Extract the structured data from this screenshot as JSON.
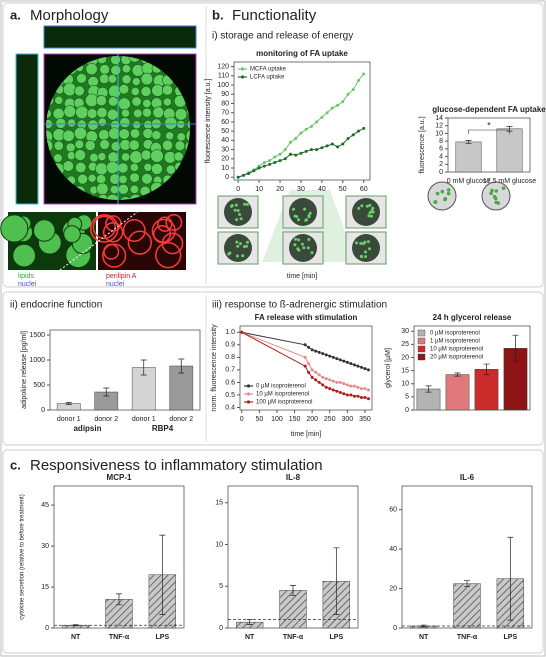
{
  "figure": {
    "a_label": "a.",
    "a_title": "Morphology",
    "stain_left": [
      "lipids",
      "nuclei"
    ],
    "stain_right": [
      "perilipin A",
      "nuclei"
    ],
    "b_label": "b.",
    "b_title": "Functionality",
    "b_i": "i) storage and release of energy",
    "b_ii": "ii) endocrine function",
    "b_iii": "iii) response to ß-adrenergic stimulation",
    "c_label": "c.",
    "c_title": "Responsiveness to inflammatory stimulation"
  },
  "chart_data": [
    {
      "type": "line",
      "title": "monitoring of FA uptake",
      "xlabel": "time [min]",
      "ylabel": "fluorescence intensity [a.u.]",
      "x": [
        0,
        2.5,
        5,
        7.5,
        10,
        12.5,
        15,
        17.5,
        20,
        22.5,
        25,
        27.5,
        30,
        32.5,
        35,
        37.5,
        40,
        42.5,
        45,
        47.5,
        50,
        52.5,
        55,
        57.5,
        60
      ],
      "xlim": [
        -2,
        63
      ],
      "xticks": [
        0,
        10,
        20,
        30,
        40,
        50,
        60
      ],
      "ylim": [
        -3,
        125
      ],
      "yticks": [
        0,
        10,
        20,
        30,
        40,
        50,
        60,
        70,
        80,
        90,
        100,
        110,
        120
      ],
      "series": [
        {
          "name": "MCFA uptake",
          "color": "#6cc46c",
          "values": [
            0,
            2,
            5,
            8,
            12,
            16,
            18,
            22,
            25,
            30,
            38,
            42,
            48,
            52,
            55,
            60,
            65,
            70,
            75,
            78,
            82,
            90,
            95,
            105,
            112
          ]
        },
        {
          "name": "LCFA uptake",
          "color": "#1f6b2a",
          "values": [
            0,
            2,
            4,
            7,
            10,
            12,
            14,
            16,
            18,
            20,
            25,
            24,
            26,
            28,
            30,
            30,
            32,
            34,
            36,
            33,
            36,
            42,
            46,
            50,
            53
          ]
        }
      ],
      "legend": "upper left"
    },
    {
      "type": "bar",
      "title": "glucose-dependent FA uptake",
      "ylabel": "fluorescence [a.u.]",
      "categories": [
        "0 mM glucose",
        "17.5 mM glucose"
      ],
      "values": [
        7.8,
        11.2
      ],
      "errors": [
        0.4,
        0.6
      ],
      "color": "#c8c8c8",
      "ylim": [
        0,
        14
      ],
      "yticks": [
        0,
        2,
        4,
        6,
        8,
        10,
        12,
        14
      ],
      "annotation": "*"
    },
    {
      "type": "bar",
      "ylabel": "adipokine release [pg/ml]",
      "categories": [
        "donor 1",
        "donor 2",
        "donor 1",
        "donor 2"
      ],
      "groups": [
        "adipsin",
        "RBP4"
      ],
      "values": [
        130,
        360,
        850,
        880
      ],
      "errors": [
        20,
        80,
        150,
        140
      ],
      "colors": [
        "#d4d4d4",
        "#9a9a9a",
        "#d4d4d4",
        "#9a9a9a"
      ],
      "ylim": [
        0,
        1600
      ],
      "yticks": [
        0,
        500,
        1000,
        1500
      ]
    },
    {
      "type": "line",
      "title": "FA release with stimulation",
      "xlabel": "time [min]",
      "ylabel": "norm. fluorescence intensity",
      "x": [
        0,
        180,
        190,
        200,
        210,
        220,
        230,
        240,
        250,
        260,
        270,
        280,
        290,
        300,
        310,
        320,
        330,
        340,
        350,
        360
      ],
      "xlim": [
        -5,
        370
      ],
      "xticks": [
        0,
        50,
        100,
        150,
        200,
        250,
        300,
        350
      ],
      "ylim": [
        0.38,
        1.05
      ],
      "yticks": [
        0.4,
        0.5,
        0.6,
        0.7,
        0.8,
        0.9,
        {
          "value": 1,
          "label": "1.0"
        }
      ],
      "series": [
        {
          "name": "0 µM isoproterenol",
          "color": "#333333",
          "values": [
            1,
            0.9,
            0.88,
            0.86,
            0.85,
            0.84,
            0.83,
            0.82,
            0.81,
            0.8,
            0.79,
            0.78,
            0.77,
            0.76,
            0.75,
            0.74,
            0.73,
            0.72,
            0.71,
            0.7
          ]
        },
        {
          "name": "10 µM isoproterenol",
          "color": "#e88a8a",
          "values": [
            1,
            0.8,
            0.75,
            0.7,
            0.68,
            0.66,
            0.64,
            0.63,
            0.62,
            0.61,
            0.6,
            0.6,
            0.59,
            0.58,
            0.57,
            0.57,
            0.56,
            0.55,
            0.55,
            0.54
          ]
        },
        {
          "name": "100 µM isoproterenol",
          "color": "#b01c1c",
          "values": [
            1,
            0.73,
            0.68,
            0.64,
            0.62,
            0.6,
            0.58,
            0.56,
            0.55,
            0.54,
            0.53,
            0.52,
            0.51,
            0.5,
            0.5,
            0.49,
            0.49,
            0.48,
            0.48,
            0.47
          ]
        }
      ],
      "legend": "lower left"
    },
    {
      "type": "bar",
      "title": "24 h glycerol release",
      "ylabel": "glycerol [µM]",
      "series": [
        {
          "name": "0 µM isoproterenol",
          "color": "#b3b3b3",
          "values": [
            8
          ],
          "errors": [
            1.2
          ]
        },
        {
          "name": "1 µM isoproterenol",
          "color": "#e07a7a",
          "values": [
            13.5
          ],
          "errors": [
            0.6
          ]
        },
        {
          "name": "10 µM isoproterenol",
          "color": "#cc2b2b",
          "values": [
            15.5
          ],
          "errors": [
            2
          ]
        },
        {
          "name": "20 µM isoproterenol",
          "color": "#8c1414",
          "values": [
            23.5
          ],
          "errors": [
            5
          ]
        }
      ],
      "ylim": [
        0,
        32
      ],
      "yticks": [
        0,
        5,
        10,
        15,
        20,
        25,
        30
      ],
      "legend": "upper left"
    },
    {
      "type": "bar",
      "title": "MCP-1",
      "ylabel": "cytokine secretion (relative to before treatment)",
      "categories": [
        "NT",
        "TNF-α",
        "LPS"
      ],
      "values": [
        1,
        10.5,
        19.5
      ],
      "errors": [
        0.2,
        2,
        14.5
      ],
      "color": "#a0a0a0",
      "hatch": true,
      "reference_line": 1,
      "ylim": [
        0,
        52
      ],
      "yticks": [
        0,
        15,
        30,
        45
      ]
    },
    {
      "type": "bar",
      "title": "IL-8",
      "categories": [
        "NT",
        "TNF-α",
        "LPS"
      ],
      "values": [
        0.7,
        4.5,
        5.6
      ],
      "errors": [
        0.3,
        0.6,
        4
      ],
      "color": "#a0a0a0",
      "hatch": true,
      "reference_line": 1,
      "ylim": [
        0,
        17
      ],
      "yticks": [
        0,
        5,
        10,
        15
      ]
    },
    {
      "type": "bar",
      "title": "IL-6",
      "categories": [
        "NT",
        "TNF-α",
        "LPS"
      ],
      "values": [
        1,
        22.5,
        25
      ],
      "errors": [
        0.5,
        1.5,
        21
      ],
      "color": "#a0a0a0",
      "hatch": true,
      "reference_line": 1,
      "ylim": [
        0,
        72
      ],
      "yticks": [
        0,
        20,
        40,
        60
      ]
    }
  ]
}
